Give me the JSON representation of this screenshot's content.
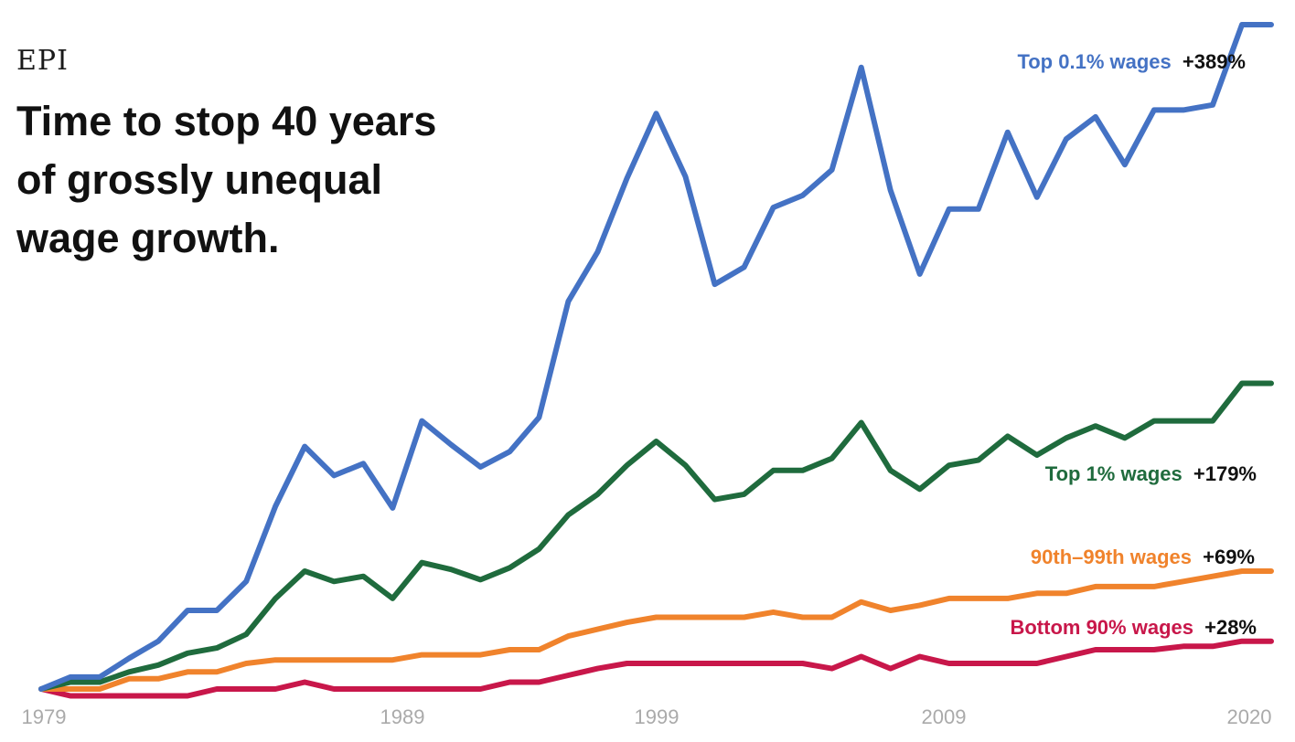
{
  "logo": "EPI",
  "chart_data": {
    "type": "line",
    "title": "Time to stop 40 years of grossly unequal wage growth.",
    "title_lines": [
      "Time to stop 40 years",
      "of grossly unequal",
      "wage growth."
    ],
    "xlabel": "",
    "ylabel": "",
    "x": [
      1979,
      1980,
      1981,
      1982,
      1983,
      1984,
      1985,
      1986,
      1987,
      1988,
      1989,
      1990,
      1991,
      1992,
      1993,
      1994,
      1995,
      1996,
      1997,
      1998,
      1999,
      2000,
      2001,
      2002,
      2003,
      2004,
      2005,
      2006,
      2007,
      2008,
      2009,
      2010,
      2011,
      2012,
      2013,
      2014,
      2015,
      2016,
      2017,
      2018,
      2019,
      2020,
      2021
    ],
    "xlim": [
      1979,
      2021
    ],
    "ylim": [
      0,
      389
    ],
    "x_ticks": [
      {
        "value": 1979,
        "label": "1979"
      },
      {
        "value": 1989,
        "label": "1989"
      },
      {
        "value": 1999,
        "label": "1999"
      },
      {
        "value": 2009,
        "label": "2009"
      },
      {
        "value": 2020,
        "label": "2020"
      }
    ],
    "grid": false,
    "legend": "inline-right",
    "series": [
      {
        "name": "Top 0.1% wages",
        "change_label": "+389%",
        "color": "#4472c4",
        "values": [
          0,
          7,
          7,
          18,
          28,
          46,
          46,
          63,
          107,
          142,
          125,
          132,
          106,
          157,
          143,
          130,
          139,
          159,
          227,
          256,
          299,
          337,
          300,
          237,
          247,
          282,
          289,
          304,
          364,
          292,
          243,
          281,
          281,
          326,
          288,
          322,
          335,
          307,
          339,
          339,
          342,
          389,
          389
        ]
      },
      {
        "name": "Top 1% wages",
        "change_label": "+179%",
        "color": "#1f6b3d",
        "values": [
          0,
          4,
          4,
          10,
          14,
          21,
          24,
          32,
          53,
          69,
          63,
          66,
          53,
          74,
          70,
          64,
          71,
          82,
          102,
          114,
          131,
          145,
          131,
          111,
          114,
          128,
          128,
          135,
          156,
          128,
          117,
          131,
          134,
          148,
          137,
          147,
          154,
          147,
          157,
          157,
          157,
          179,
          179
        ]
      },
      {
        "name": "90th–99th wages",
        "change_label": "+69%",
        "color": "#f0832c",
        "values": [
          0,
          0,
          0,
          6,
          6,
          10,
          10,
          15,
          17,
          17,
          17,
          17,
          17,
          20,
          20,
          20,
          23,
          23,
          31,
          35,
          39,
          42,
          42,
          42,
          42,
          45,
          42,
          42,
          51,
          46,
          49,
          53,
          53,
          53,
          56,
          56,
          60,
          60,
          60,
          63,
          66,
          69,
          69
        ]
      },
      {
        "name": "Bottom 90% wages",
        "change_label": "+28%",
        "color": "#c8174a",
        "values": [
          0,
          -4,
          -4,
          -4,
          -4,
          -4,
          0,
          0,
          0,
          4,
          0,
          0,
          0,
          0,
          0,
          0,
          4,
          4,
          8,
          12,
          15,
          15,
          15,
          15,
          15,
          15,
          15,
          12,
          19,
          12,
          19,
          15,
          15,
          15,
          15,
          19,
          23,
          23,
          23,
          25,
          25,
          28,
          28
        ]
      }
    ]
  }
}
